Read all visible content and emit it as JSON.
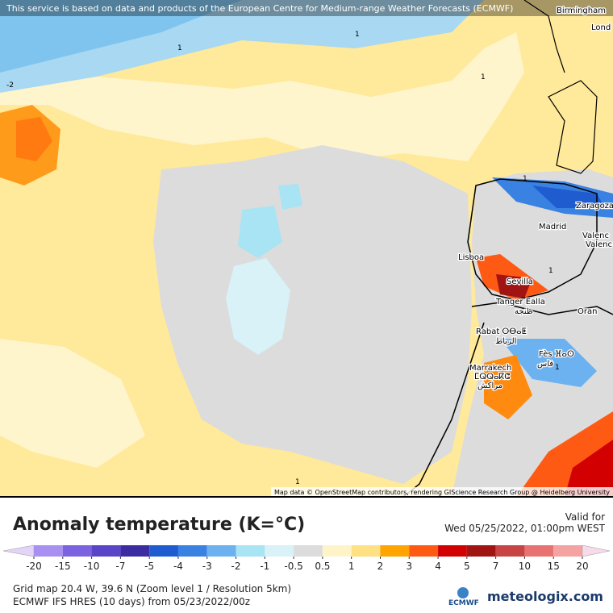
{
  "header": {
    "banner": "This service is based on data and products of the European Centre for Medium-range Weather Forecasts (ECMWF)"
  },
  "map": {
    "cities": [
      "Birmingham",
      "Lond",
      "Zaragoza",
      "Madrid",
      "Valenc",
      "Valenc",
      "Lisboa",
      "Sevilla",
      "Tanger Ealla",
      "طنجة",
      "Oran",
      "Rabat ⵔⴱⴰⵟ",
      "الرباط",
      "Fès ⴼⴰⵙ",
      "فاس",
      "Marrakech",
      "ⵎⵕⵕⴰⴽⵛ",
      "مراكش"
    ],
    "contour_labels": [
      "1",
      "1",
      "1",
      "1",
      "1",
      "1",
      "1",
      "-2"
    ],
    "attribution": "Map data © OpenStreetMap contributors, rendering GIScience Research Group @ Heidelberg University"
  },
  "title": "Anomaly temperature (K=°C)",
  "valid": {
    "label": "Valid for",
    "time": "Wed 05/25/2022, 01:00pm WEST"
  },
  "colorbar": {
    "ticks": [
      -20,
      -15,
      -10,
      -7,
      -5,
      -4,
      -3,
      -2,
      -1,
      -0.5,
      0.5,
      1,
      2,
      3,
      4,
      5,
      7,
      10,
      15,
      20
    ],
    "colors": [
      "#e2d4f8",
      "#a890f0",
      "#7c62e0",
      "#5a44c8",
      "#3c2ca2",
      "#1e5cd0",
      "#3a82e2",
      "#6cb2f0",
      "#a8e4f4",
      "#d8f2f8",
      "#dcdcdc",
      "#fff4c8",
      "#ffe082",
      "#ffa400",
      "#ff5a14",
      "#d20000",
      "#a01414",
      "#c84444",
      "#e87272",
      "#f4a2a2",
      "#f8dbe8"
    ]
  },
  "footer": {
    "grid": "Grid map 20.4 W, 39.6 N (Zoom level 1 / Resolution 5km)",
    "model": "ECMWF IFS HRES (10 days) from 05/23/2022/00z",
    "ecmwf": "ECMWF",
    "brand": "meteologix.com"
  }
}
